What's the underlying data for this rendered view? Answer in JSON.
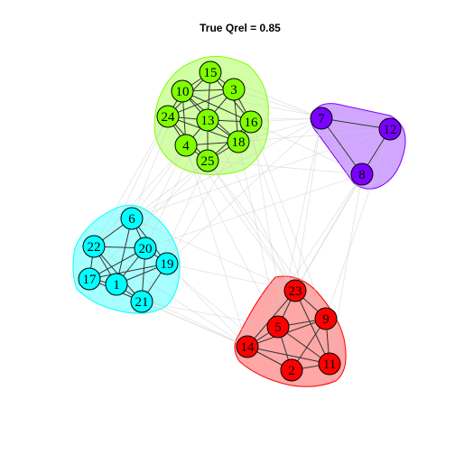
{
  "title": "True Qrel = 0.85",
  "colors": {
    "green": "#7FFF00",
    "purple": "#7A00FF",
    "cyan": "#00FFFF",
    "red": "#FF0000"
  },
  "groups": [
    {
      "id": "green",
      "color": "#7FFF00",
      "nodes": [
        15,
        10,
        3,
        24,
        13,
        16,
        18,
        4,
        25
      ]
    },
    {
      "id": "purple",
      "color": "#7A00FF",
      "nodes": [
        7,
        12,
        8
      ]
    },
    {
      "id": "cyan",
      "color": "#00FFFF",
      "nodes": [
        6,
        22,
        20,
        19,
        17,
        1,
        21
      ]
    },
    {
      "id": "red",
      "color": "#FF0000",
      "nodes": [
        23,
        5,
        9,
        14,
        2,
        11
      ]
    }
  ],
  "nodes": [
    {
      "id": "15",
      "group": "green"
    },
    {
      "id": "10",
      "group": "green"
    },
    {
      "id": "3",
      "group": "green"
    },
    {
      "id": "24",
      "group": "green"
    },
    {
      "id": "13",
      "group": "green"
    },
    {
      "id": "16",
      "group": "green"
    },
    {
      "id": "18",
      "group": "green"
    },
    {
      "id": "4",
      "group": "green"
    },
    {
      "id": "25",
      "group": "green"
    },
    {
      "id": "7",
      "group": "purple"
    },
    {
      "id": "12",
      "group": "purple"
    },
    {
      "id": "8",
      "group": "purple"
    },
    {
      "id": "6",
      "group": "cyan"
    },
    {
      "id": "22",
      "group": "cyan"
    },
    {
      "id": "20",
      "group": "cyan"
    },
    {
      "id": "19",
      "group": "cyan"
    },
    {
      "id": "17",
      "group": "cyan"
    },
    {
      "id": "1",
      "group": "cyan"
    },
    {
      "id": "21",
      "group": "cyan"
    },
    {
      "id": "23",
      "group": "red"
    },
    {
      "id": "5",
      "group": "red"
    },
    {
      "id": "9",
      "group": "red"
    },
    {
      "id": "14",
      "group": "red"
    },
    {
      "id": "2",
      "group": "red"
    },
    {
      "id": "11",
      "group": "red"
    }
  ],
  "edges_within": [
    [
      "15",
      "10"
    ],
    [
      "15",
      "3"
    ],
    [
      "15",
      "13"
    ],
    [
      "15",
      "24"
    ],
    [
      "15",
      "16"
    ],
    [
      "10",
      "3"
    ],
    [
      "10",
      "24"
    ],
    [
      "10",
      "13"
    ],
    [
      "10",
      "16"
    ],
    [
      "10",
      "18"
    ],
    [
      "3",
      "13"
    ],
    [
      "3",
      "16"
    ],
    [
      "3",
      "18"
    ],
    [
      "3",
      "24"
    ],
    [
      "24",
      "13"
    ],
    [
      "24",
      "4"
    ],
    [
      "24",
      "25"
    ],
    [
      "24",
      "18"
    ],
    [
      "13",
      "16"
    ],
    [
      "13",
      "18"
    ],
    [
      "13",
      "4"
    ],
    [
      "13",
      "25"
    ],
    [
      "16",
      "18"
    ],
    [
      "16",
      "25"
    ],
    [
      "18",
      "4"
    ],
    [
      "18",
      "25"
    ],
    [
      "4",
      "25"
    ],
    [
      "4",
      "10"
    ],
    [
      "7",
      "12"
    ],
    [
      "7",
      "8"
    ],
    [
      "12",
      "8"
    ],
    [
      "6",
      "22"
    ],
    [
      "6",
      "20"
    ],
    [
      "6",
      "1"
    ],
    [
      "6",
      "19"
    ],
    [
      "22",
      "20"
    ],
    [
      "22",
      "17"
    ],
    [
      "22",
      "1"
    ],
    [
      "22",
      "21"
    ],
    [
      "20",
      "19"
    ],
    [
      "20",
      "17"
    ],
    [
      "20",
      "1"
    ],
    [
      "20",
      "21"
    ],
    [
      "19",
      "1"
    ],
    [
      "19",
      "21"
    ],
    [
      "19",
      "17"
    ],
    [
      "17",
      "1"
    ],
    [
      "17",
      "21"
    ],
    [
      "1",
      "21"
    ],
    [
      "23",
      "5"
    ],
    [
      "23",
      "9"
    ],
    [
      "23",
      "14"
    ],
    [
      "23",
      "11"
    ],
    [
      "5",
      "9"
    ],
    [
      "5",
      "14"
    ],
    [
      "5",
      "2"
    ],
    [
      "5",
      "11"
    ],
    [
      "9",
      "14"
    ],
    [
      "9",
      "11"
    ],
    [
      "9",
      "2"
    ],
    [
      "14",
      "2"
    ],
    [
      "14",
      "11"
    ],
    [
      "2",
      "11"
    ]
  ],
  "edges_between": [
    [
      "16",
      "7"
    ],
    [
      "3",
      "7"
    ],
    [
      "18",
      "7"
    ],
    [
      "13",
      "7"
    ],
    [
      "16",
      "8"
    ],
    [
      "18",
      "12"
    ],
    [
      "25",
      "8"
    ],
    [
      "15",
      "7"
    ],
    [
      "10",
      "12"
    ],
    [
      "4",
      "6"
    ],
    [
      "25",
      "6"
    ],
    [
      "24",
      "22"
    ],
    [
      "4",
      "22"
    ],
    [
      "13",
      "20"
    ],
    [
      "18",
      "19"
    ],
    [
      "25",
      "17"
    ],
    [
      "4",
      "1"
    ],
    [
      "10",
      "6"
    ],
    [
      "24",
      "17"
    ],
    [
      "25",
      "21"
    ],
    [
      "25",
      "23"
    ],
    [
      "18",
      "5"
    ],
    [
      "16",
      "9"
    ],
    [
      "4",
      "14"
    ],
    [
      "13",
      "23"
    ],
    [
      "24",
      "5"
    ],
    [
      "16",
      "2"
    ],
    [
      "3",
      "11"
    ],
    [
      "25",
      "9"
    ],
    [
      "4",
      "23"
    ],
    [
      "7",
      "23"
    ],
    [
      "8",
      "23"
    ],
    [
      "12",
      "9"
    ],
    [
      "8",
      "11"
    ],
    [
      "7",
      "5"
    ],
    [
      "8",
      "14"
    ],
    [
      "12",
      "23"
    ],
    [
      "6",
      "7"
    ],
    [
      "20",
      "8"
    ],
    [
      "19",
      "7"
    ],
    [
      "6",
      "12"
    ],
    [
      "21",
      "14"
    ],
    [
      "1",
      "14"
    ],
    [
      "19",
      "23"
    ],
    [
      "21",
      "5"
    ],
    [
      "17",
      "14"
    ],
    [
      "20",
      "2"
    ],
    [
      "19",
      "14"
    ],
    [
      "22",
      "14"
    ],
    [
      "6",
      "23"
    ]
  ]
}
